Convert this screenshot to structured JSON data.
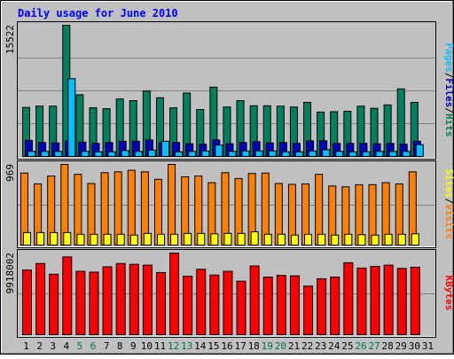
{
  "chart_data": {
    "type": "bar",
    "title": "Daily usage for June 2010",
    "categories": [
      "1",
      "2",
      "3",
      "4",
      "5",
      "6",
      "7",
      "8",
      "9",
      "10",
      "11",
      "12",
      "13",
      "14",
      "15",
      "16",
      "17",
      "18",
      "19",
      "20",
      "21",
      "22",
      "23",
      "24",
      "25",
      "26",
      "27",
      "28",
      "29",
      "30",
      "31"
    ],
    "weekend_days": [
      "5",
      "6",
      "12",
      "13",
      "19",
      "20",
      "26",
      "27"
    ],
    "weekday_label_color": "#000000",
    "weekend_label_color": "#007050",
    "panels": [
      {
        "id": "hits_files_pages",
        "max_label": "15522",
        "ymax": 15522,
        "right_label_parts": [
          {
            "text": "Hits",
            "color": "#00805C"
          },
          {
            "text": "/",
            "color": "#000000"
          },
          {
            "text": "Files",
            "color": "#0000C0"
          },
          {
            "text": "/",
            "color": "#000000"
          },
          {
            "text": "Pages",
            "color": "#00C0FF"
          }
        ],
        "series": [
          {
            "name": "Hits",
            "color": "#00805C",
            "values": [
              5800,
              5950,
              5950,
              15522,
              7300,
              5750,
              5650,
              6800,
              6600,
              7750,
              6950,
              5750,
              7500,
              5550,
              8200,
              5850,
              6600,
              6000,
              6000,
              5950,
              5850,
              6400,
              5250,
              5300,
              5350,
              5950,
              5700,
              6100,
              8000,
              6400,
              null
            ]
          },
          {
            "name": "Files",
            "color": "#0000C0",
            "values": [
              1900,
              1650,
              1600,
              1850,
              1700,
              1550,
              1650,
              1800,
              1800,
              1950,
              1600,
              1650,
              1500,
              1450,
              1950,
              1500,
              1650,
              1750,
              1600,
              1650,
              1550,
              1850,
              1850,
              1550,
              1550,
              1550,
              1500,
              1550,
              1450,
              1800,
              null
            ]
          },
          {
            "name": "Pages",
            "color": "#00C0FF",
            "values": [
              600,
              600,
              600,
              9200,
              600,
              550,
              550,
              700,
              600,
              750,
              1800,
              550,
              600,
              650,
              1350,
              600,
              650,
              650,
              650,
              550,
              550,
              650,
              800,
              600,
              550,
              550,
              600,
              600,
              600,
              1400,
              null
            ]
          }
        ]
      },
      {
        "id": "visits_sites",
        "max_label": "969",
        "ymax": 969,
        "right_label_parts": [
          {
            "text": "Visits",
            "color": "#FF8000"
          },
          {
            "text": "/",
            "color": "#000000"
          },
          {
            "text": "Sites",
            "color": "#FFFF00"
          }
        ],
        "series": [
          {
            "name": "Visits",
            "color": "#FF8000",
            "values": [
              865,
              735,
              830,
              969,
              850,
              740,
              870,
              880,
              899,
              880,
              790,
              969,
              820,
              830,
              750,
              870,
              800,
              860,
              865,
              740,
              730,
              735,
              850,
              710,
              700,
              725,
              726,
              750,
              735,
              880,
              null
            ]
          },
          {
            "name": "Sites",
            "color": "#FFFF00",
            "values": [
              150,
              150,
              150,
              150,
              130,
              130,
              130,
              130,
              120,
              140,
              130,
              130,
              140,
              140,
              135,
              140,
              140,
              160,
              130,
              130,
              120,
              130,
              130,
              120,
              130,
              125,
              120,
              130,
              130,
              135,
              null
            ]
          }
        ]
      },
      {
        "id": "kbytes",
        "max_label": "9918002",
        "ymax": 9918002,
        "right_label_parts": [
          {
            "text": "KBytes",
            "color": "#FF0000"
          }
        ],
        "series": [
          {
            "name": "KBytes",
            "color": "#FF0000",
            "values": [
              7850000,
              8650000,
              7350000,
              9450000,
              7700000,
              7600000,
              8250000,
              8650000,
              8550000,
              8450000,
              7550000,
              9918002,
              7100000,
              7950000,
              7250000,
              7700000,
              6500000,
              8350000,
              7000000,
              7200000,
              7150000,
              5900000,
              6800000,
              7000000,
              8750000,
              8100000,
              8300000,
              8450000,
              8050000,
              8200000,
              null
            ]
          }
        ]
      }
    ],
    "xlabel": "",
    "ylabel": ""
  }
}
